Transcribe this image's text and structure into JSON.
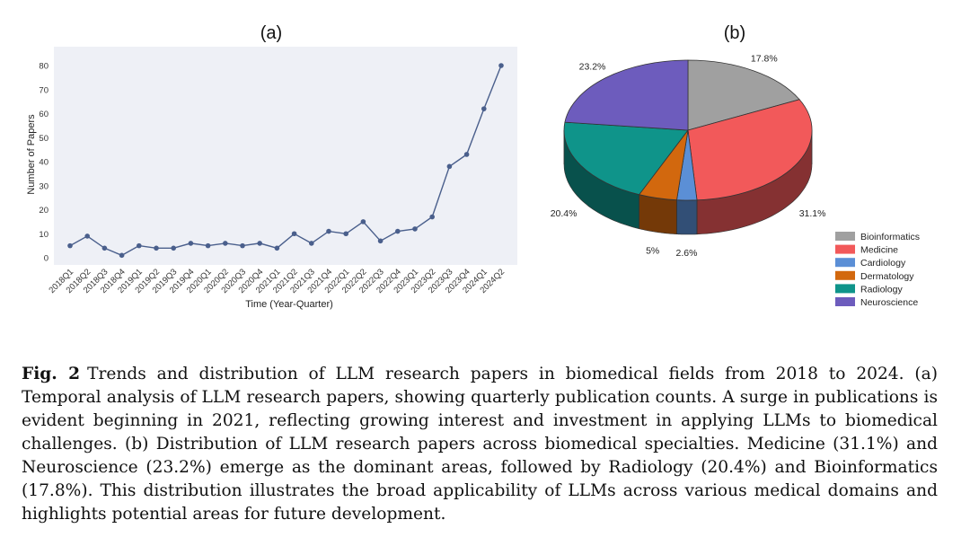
{
  "chart_data": [
    {
      "type": "line",
      "panel_label": "(a)",
      "xlabel": "Time (Year-Quarter)",
      "ylabel": "Number of Papers",
      "ylim": [
        0,
        80
      ],
      "yticks": [
        0,
        10,
        20,
        30,
        40,
        50,
        60,
        70,
        80
      ],
      "grid": false,
      "x": [
        "2018Q1",
        "2018Q2",
        "2018Q3",
        "2018Q4",
        "2019Q1",
        "2019Q2",
        "2019Q3",
        "2019Q4",
        "2020Q1",
        "2020Q2",
        "2020Q3",
        "2020Q4",
        "2021Q1",
        "2021Q2",
        "2021Q3",
        "2021Q4",
        "2022Q1",
        "2022Q2",
        "2022Q3",
        "2022Q4",
        "2023Q1",
        "2023Q2",
        "2023Q3",
        "2023Q4",
        "2024Q1",
        "2024Q2"
      ],
      "series": [
        {
          "values": [
            5,
            9,
            4,
            1,
            5,
            4,
            4,
            6,
            5,
            6,
            5,
            6,
            4,
            10,
            6,
            11,
            10,
            15,
            7,
            11,
            12,
            17,
            38,
            43,
            62,
            80
          ]
        }
      ],
      "color": "#4a5f8c",
      "background": "#eef0f6"
    },
    {
      "type": "pie",
      "panel_label": "(b)",
      "style": "3d",
      "legend": "bottom-right",
      "labels": [
        "Bioinformatics",
        "Medicine",
        "Cardiology",
        "Dermatology",
        "Radiology",
        "Neuroscience"
      ],
      "values": [
        17.8,
        31.1,
        2.6,
        5,
        20.4,
        23.2
      ],
      "value_labels": [
        "17.8%",
        "31.1%",
        "2.6%",
        "5%",
        "20.4%",
        "23.2%"
      ],
      "colors": [
        "#a0a0a0",
        "#f2595a",
        "#5b8fd6",
        "#d2680e",
        "#0f948a",
        "#6d5cbd"
      ]
    }
  ],
  "caption": {
    "label": "Fig. 2",
    "text": "Trends and distribution of LLM research papers in biomedical fields from 2018 to 2024. (a) Temporal analysis of LLM research papers, showing quarterly publication counts. A surge in publications is evident beginning in 2021, reflecting growing interest and investment in applying LLMs to biomedical challenges. (b) Distribution of LLM research papers across biomedical specialties. Medicine (31.1%) and Neuroscience (23.2%) emerge as the dominant areas, followed by Radiology (20.4%) and Bioinformatics (17.8%). This distribution illustrates the broad applicability of LLMs across various medical domains and highlights potential areas for future development."
  }
}
